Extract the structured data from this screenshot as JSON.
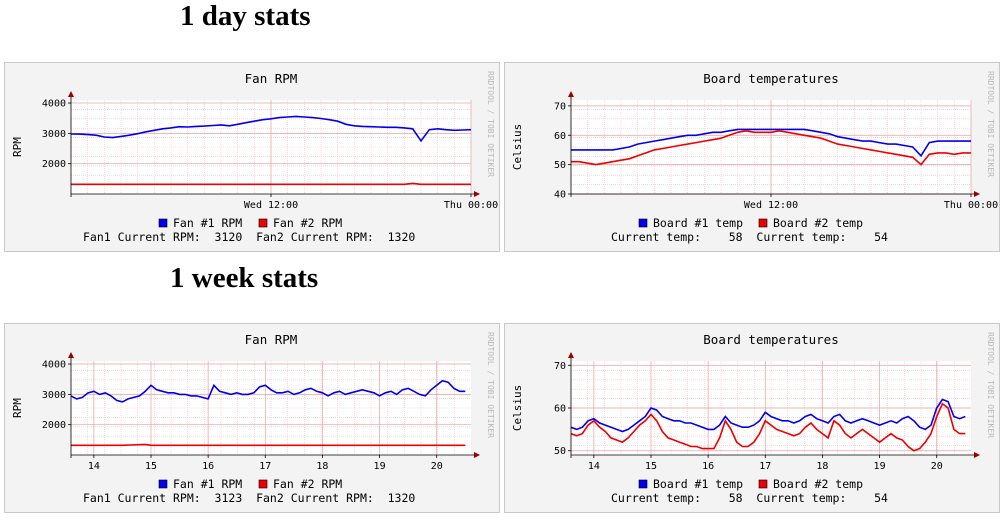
{
  "sections": [
    {
      "title": "1 day stats"
    },
    {
      "title": "1 week stats"
    }
  ],
  "watermark": "RRDTOOL / TOBI OETIKER",
  "colors": {
    "series1": "#0000ee",
    "series2": "#ee0000",
    "grid": "#f2c4c4",
    "axis": "#990000"
  },
  "chart_data": [
    {
      "type": "line",
      "title": "Fan RPM",
      "ylabel": "RPM",
      "ylim": [
        1000,
        4100
      ],
      "yticks": [
        2000,
        3000,
        4000
      ],
      "xlim": [
        0,
        48
      ],
      "xticks": [
        {
          "x": 24,
          "label": "Wed 12:00"
        },
        {
          "x": 48,
          "label": "Thu 00:00"
        }
      ],
      "series": [
        {
          "name": "Fan #1 RPM",
          "color": "#0000ee",
          "values": [
            2980,
            2975,
            2960,
            2940,
            2880,
            2860,
            2900,
            2940,
            2990,
            3050,
            3100,
            3150,
            3180,
            3220,
            3210,
            3230,
            3240,
            3260,
            3280,
            3250,
            3300,
            3350,
            3400,
            3450,
            3480,
            3520,
            3540,
            3560,
            3540,
            3520,
            3490,
            3450,
            3400,
            3300,
            3250,
            3230,
            3220,
            3210,
            3200,
            3200,
            3180,
            3150,
            2750,
            3120,
            3150,
            3120,
            3100,
            3110,
            3120
          ]
        },
        {
          "name": "Fan #2 RPM",
          "color": "#ee0000",
          "values": [
            1320,
            1320,
            1320,
            1320,
            1320,
            1320,
            1320,
            1320,
            1320,
            1320,
            1320,
            1320,
            1320,
            1320,
            1320,
            1320,
            1320,
            1320,
            1320,
            1320,
            1320,
            1320,
            1320,
            1320,
            1320,
            1320,
            1320,
            1320,
            1320,
            1320,
            1320,
            1320,
            1320,
            1320,
            1320,
            1320,
            1320,
            1320,
            1320,
            1320,
            1320,
            1350,
            1320,
            1320,
            1320,
            1320,
            1320,
            1320,
            1320
          ]
        }
      ],
      "legend_lines": [
        "Fan1 Current RPM:  3120  Fan2 Current RPM:  1320"
      ]
    },
    {
      "type": "line",
      "title": "Board temperatures",
      "ylabel": "Celsius",
      "ylim": [
        40,
        72
      ],
      "yticks": [
        40,
        50,
        60,
        70
      ],
      "xlim": [
        0,
        48
      ],
      "xticks": [
        {
          "x": 24,
          "label": "Wed 12:00"
        },
        {
          "x": 48,
          "label": "Thu 00:00"
        }
      ],
      "series": [
        {
          "name": "Board #1 temp",
          "color": "#0000ee",
          "values": [
            55,
            55,
            55,
            55,
            55,
            55,
            55.5,
            56,
            57,
            57.5,
            58,
            58.5,
            59,
            59.5,
            60,
            60,
            60.5,
            61,
            61,
            61.5,
            62,
            62,
            62,
            62,
            62,
            62,
            62,
            62,
            62,
            61.5,
            61,
            60.5,
            59.5,
            59,
            58.5,
            58,
            58,
            57.5,
            57,
            57,
            56.5,
            56,
            53,
            57.5,
            58,
            58,
            58,
            58,
            58
          ]
        },
        {
          "name": "Board #2 temp",
          "color": "#ee0000",
          "values": [
            51,
            51,
            50.5,
            50,
            50.5,
            51,
            51.5,
            52,
            53,
            54,
            55,
            55.5,
            56,
            56.5,
            57,
            57.5,
            58,
            58.5,
            59,
            60,
            61,
            61.5,
            61,
            61,
            61,
            61.5,
            61,
            60.5,
            60,
            59.5,
            59,
            58,
            57,
            56.5,
            56,
            55.5,
            55,
            54.5,
            54,
            53.5,
            53,
            52.5,
            50,
            53.5,
            54,
            54,
            53.5,
            54,
            54
          ]
        }
      ],
      "legend_lines": [
        "Current temp:    58  Current temp:    54"
      ]
    },
    {
      "type": "line",
      "title": "Fan RPM",
      "ylabel": "RPM",
      "ylim": [
        1000,
        4100
      ],
      "yticks": [
        2000,
        3000,
        4000
      ],
      "xlim": [
        13.6,
        20.6
      ],
      "xticks": [
        {
          "x": 14,
          "label": "14"
        },
        {
          "x": 15,
          "label": "15"
        },
        {
          "x": 16,
          "label": "16"
        },
        {
          "x": 17,
          "label": "17"
        },
        {
          "x": 18,
          "label": "18"
        },
        {
          "x": 19,
          "label": "19"
        },
        {
          "x": 20,
          "label": "20"
        }
      ],
      "series": [
        {
          "name": "Fan #1 RPM",
          "color": "#0000ee",
          "x": [
            13.6,
            13.7,
            13.8,
            13.9,
            14.0,
            14.1,
            14.2,
            14.3,
            14.4,
            14.5,
            14.6,
            14.7,
            14.8,
            14.9,
            15.0,
            15.1,
            15.2,
            15.3,
            15.4,
            15.5,
            15.6,
            15.7,
            15.8,
            15.9,
            16.0,
            16.1,
            16.2,
            16.3,
            16.4,
            16.5,
            16.6,
            16.7,
            16.8,
            16.9,
            17.0,
            17.1,
            17.2,
            17.3,
            17.4,
            17.5,
            17.6,
            17.7,
            17.8,
            17.9,
            18.0,
            18.1,
            18.2,
            18.3,
            18.4,
            18.5,
            18.6,
            18.7,
            18.8,
            18.9,
            19.0,
            19.1,
            19.2,
            19.3,
            19.4,
            19.5,
            19.6,
            19.7,
            19.8,
            19.9,
            20.0,
            20.1,
            20.2,
            20.3,
            20.4,
            20.5
          ],
          "values": [
            2950,
            2850,
            2900,
            3050,
            3100,
            3000,
            3050,
            2950,
            2800,
            2750,
            2850,
            2900,
            2950,
            3100,
            3300,
            3150,
            3100,
            3050,
            3050,
            3000,
            3000,
            2950,
            2950,
            2900,
            2850,
            3300,
            3100,
            3050,
            3000,
            3050,
            3000,
            3000,
            3050,
            3250,
            3300,
            3150,
            3050,
            3050,
            3100,
            3000,
            3050,
            3150,
            3200,
            3100,
            3050,
            2950,
            3050,
            3100,
            3000,
            3050,
            3100,
            3150,
            3100,
            3050,
            2950,
            3050,
            3100,
            3000,
            3150,
            3200,
            3100,
            3000,
            2950,
            3150,
            3300,
            3450,
            3400,
            3200,
            3100,
            3100
          ]
        },
        {
          "name": "Fan #2 RPM",
          "color": "#ee0000",
          "x": [
            13.6,
            14.0,
            14.5,
            14.9,
            15.0,
            16.0,
            17.0,
            18.0,
            19.0,
            20.0,
            20.5
          ],
          "values": [
            1320,
            1320,
            1320,
            1350,
            1320,
            1320,
            1320,
            1320,
            1320,
            1320,
            1320
          ]
        }
      ],
      "legend_lines": [
        "Fan1 Current RPM:  3123  Fan2 Current RPM:  1320"
      ]
    },
    {
      "type": "line",
      "title": "Board temperatures",
      "ylabel": "Celsius",
      "ylim": [
        49,
        71
      ],
      "yticks": [
        50,
        60,
        70
      ],
      "xlim": [
        13.6,
        20.6
      ],
      "xticks": [
        {
          "x": 14,
          "label": "14"
        },
        {
          "x": 15,
          "label": "15"
        },
        {
          "x": 16,
          "label": "16"
        },
        {
          "x": 17,
          "label": "17"
        },
        {
          "x": 18,
          "label": "18"
        },
        {
          "x": 19,
          "label": "19"
        },
        {
          "x": 20,
          "label": "20"
        }
      ],
      "series": [
        {
          "name": "Board #1 temp",
          "color": "#0000ee",
          "x": [
            13.6,
            13.7,
            13.8,
            13.9,
            14.0,
            14.1,
            14.2,
            14.3,
            14.4,
            14.5,
            14.6,
            14.7,
            14.8,
            14.9,
            15.0,
            15.1,
            15.2,
            15.3,
            15.4,
            15.5,
            15.6,
            15.7,
            15.8,
            15.9,
            16.0,
            16.1,
            16.2,
            16.3,
            16.4,
            16.5,
            16.6,
            16.7,
            16.8,
            16.9,
            17.0,
            17.1,
            17.2,
            17.3,
            17.4,
            17.5,
            17.6,
            17.7,
            17.8,
            17.9,
            18.0,
            18.1,
            18.2,
            18.3,
            18.4,
            18.5,
            18.6,
            18.7,
            18.8,
            18.9,
            19.0,
            19.1,
            19.2,
            19.3,
            19.4,
            19.5,
            19.6,
            19.7,
            19.8,
            19.9,
            20.0,
            20.1,
            20.2,
            20.3,
            20.4,
            20.5
          ],
          "values": [
            55.5,
            55,
            55.5,
            57,
            57.5,
            56.5,
            56,
            55.5,
            55,
            54.5,
            55,
            56,
            57,
            58,
            60,
            59.5,
            58,
            57.5,
            57,
            57,
            56.5,
            56.5,
            56,
            55.5,
            55,
            55,
            56,
            58,
            56.5,
            56,
            55.5,
            55.5,
            56,
            57,
            59,
            58,
            57.5,
            57,
            57,
            56.5,
            57,
            58,
            58.5,
            57.5,
            57,
            56.5,
            58,
            58.5,
            57,
            56.5,
            57,
            57.5,
            57,
            56.5,
            56,
            56.5,
            57,
            56.5,
            57.5,
            58,
            57,
            55.5,
            55,
            56,
            60,
            62,
            61.5,
            58,
            57.5,
            58
          ]
        },
        {
          "name": "Board #2 temp",
          "color": "#ee0000",
          "x": [
            13.6,
            13.7,
            13.8,
            13.9,
            14.0,
            14.1,
            14.2,
            14.3,
            14.4,
            14.5,
            14.6,
            14.7,
            14.8,
            14.9,
            15.0,
            15.1,
            15.2,
            15.3,
            15.4,
            15.5,
            15.6,
            15.7,
            15.8,
            15.9,
            16.0,
            16.1,
            16.2,
            16.3,
            16.4,
            16.5,
            16.6,
            16.7,
            16.8,
            16.9,
            17.0,
            17.1,
            17.2,
            17.3,
            17.4,
            17.5,
            17.6,
            17.7,
            17.8,
            17.9,
            18.0,
            18.1,
            18.2,
            18.3,
            18.4,
            18.5,
            18.6,
            18.7,
            18.8,
            18.9,
            19.0,
            19.1,
            19.2,
            19.3,
            19.4,
            19.5,
            19.6,
            19.7,
            19.8,
            19.9,
            20.0,
            20.1,
            20.2,
            20.3,
            20.4,
            20.5
          ],
          "values": [
            54,
            53.5,
            54,
            56,
            57,
            55.5,
            54.5,
            53,
            52.5,
            52,
            53,
            54.5,
            56,
            57,
            58.5,
            57,
            54.5,
            53,
            52.5,
            52,
            51.5,
            51,
            51,
            50.5,
            50.5,
            50.5,
            53,
            57,
            55,
            52,
            51,
            51,
            52,
            54,
            57,
            56,
            55,
            54.5,
            54,
            53.5,
            54,
            55.5,
            56.5,
            55,
            54,
            53,
            57,
            56,
            54,
            53,
            54,
            55,
            54,
            53,
            52,
            53,
            54,
            53,
            52.5,
            51,
            50,
            50.5,
            52,
            54,
            58,
            61,
            60,
            55,
            54,
            54
          ]
        }
      ],
      "legend_lines": [
        "Current temp:    58  Current temp:    54"
      ]
    }
  ]
}
